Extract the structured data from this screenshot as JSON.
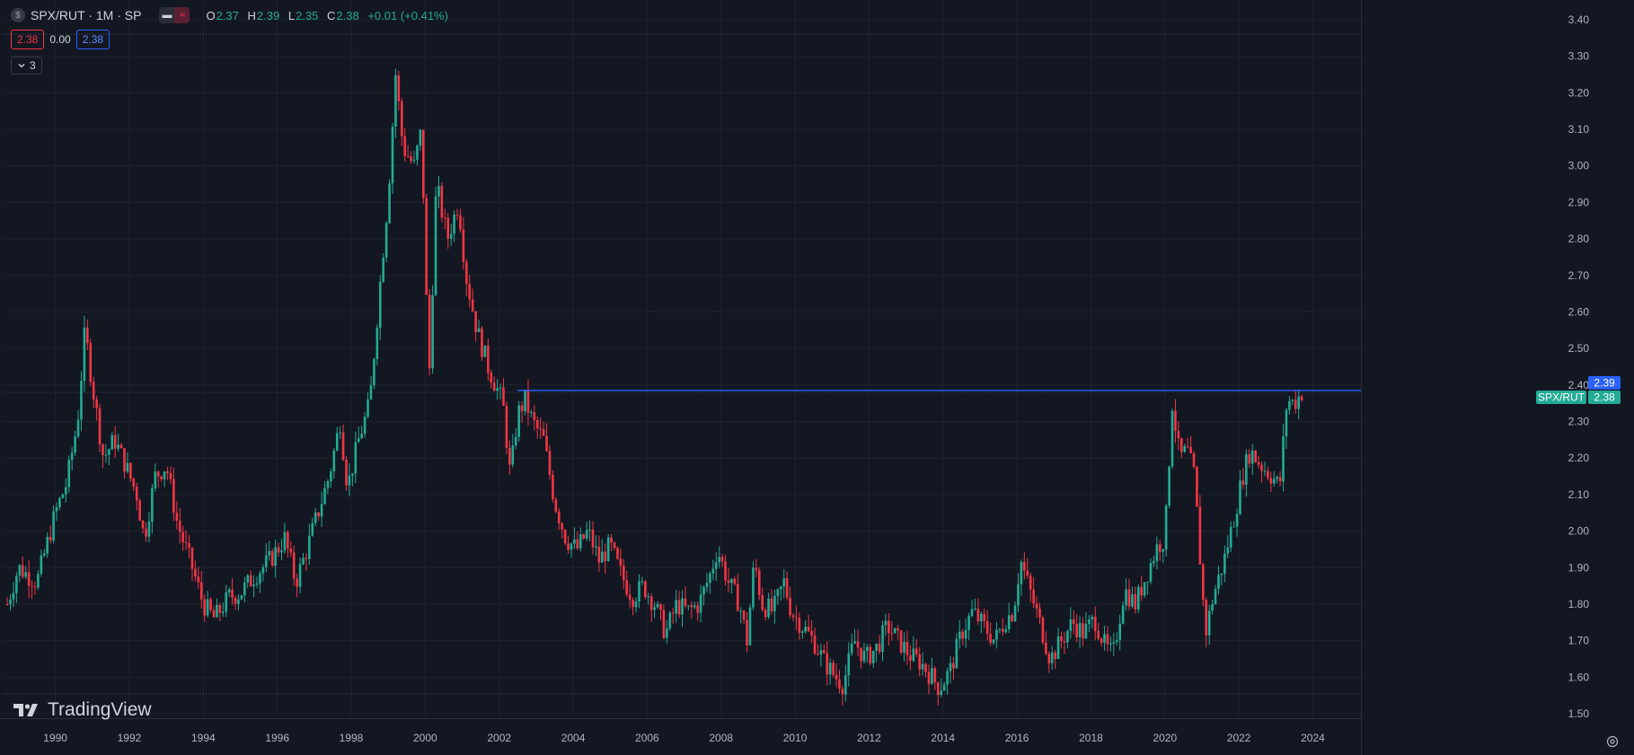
{
  "header": {
    "symbol_icon": "$",
    "symbol": "SPX/RUT · 1M · SP",
    "ohlc": [
      {
        "k": "O",
        "v": "2.37"
      },
      {
        "k": "H",
        "v": "2.39"
      },
      {
        "k": "L",
        "v": "2.35"
      },
      {
        "k": "C",
        "v": "2.38"
      },
      {
        "k": "",
        "v": "+0.01 (+0.41%)"
      }
    ]
  },
  "trade_box": {
    "sell": "2.38",
    "spread": "0.00",
    "buy": "2.38"
  },
  "indicators_toggle": {
    "icon": "chevron-down-icon",
    "count": "3"
  },
  "logo_text": "TradingView",
  "colors": {
    "bg": "#131722",
    "up": "#22ab94",
    "down": "#f23645",
    "line": "#2962ff",
    "grid": "#1e222d",
    "text": "#b2b5be"
  },
  "chart_data": {
    "type": "candlestick",
    "series_name": "SPX/RUT",
    "interval": "1M",
    "ylim": [
      1.5,
      3.4
    ],
    "yticks": [
      "3.40",
      "3.30",
      "3.20",
      "3.10",
      "3.00",
      "2.90",
      "2.80",
      "2.70",
      "2.60",
      "2.50",
      "2.40",
      "2.30",
      "2.20",
      "2.10",
      "2.00",
      "1.90",
      "1.80",
      "1.70",
      "1.60",
      "1.50"
    ],
    "xlim": [
      1988.6,
      2025.3
    ],
    "xticks": [
      "1990",
      "1992",
      "1994",
      "1996",
      "1998",
      "2000",
      "2002",
      "2004",
      "2006",
      "2008",
      "2010",
      "2012",
      "2014",
      "2016",
      "2018",
      "2020",
      "2022",
      "2024"
    ],
    "close_path": [
      [
        1988.7,
        1.8
      ],
      [
        1989.0,
        1.9
      ],
      [
        1989.5,
        1.86
      ],
      [
        1990.0,
        2.05
      ],
      [
        1990.3,
        2.13
      ],
      [
        1990.6,
        2.3
      ],
      [
        1990.8,
        2.55
      ],
      [
        1991.0,
        2.4
      ],
      [
        1991.3,
        2.2
      ],
      [
        1991.6,
        2.25
      ],
      [
        1991.9,
        2.18
      ],
      [
        1992.2,
        2.1
      ],
      [
        1992.4,
        1.98
      ],
      [
        1992.7,
        2.15
      ],
      [
        1993.0,
        2.18
      ],
      [
        1993.3,
        2.02
      ],
      [
        1993.7,
        1.9
      ],
      [
        1994.0,
        1.8
      ],
      [
        1994.3,
        1.76
      ],
      [
        1994.7,
        1.82
      ],
      [
        1995.0,
        1.83
      ],
      [
        1995.4,
        1.88
      ],
      [
        1995.8,
        1.92
      ],
      [
        1996.2,
        1.98
      ],
      [
        1996.5,
        1.86
      ],
      [
        1996.8,
        1.95
      ],
      [
        1997.1,
        2.05
      ],
      [
        1997.4,
        2.15
      ],
      [
        1997.7,
        2.3
      ],
      [
        1997.9,
        2.12
      ],
      [
        1998.2,
        2.25
      ],
      [
        1998.5,
        2.35
      ],
      [
        1998.8,
        2.7
      ],
      [
        1999.0,
        2.92
      ],
      [
        1999.2,
        3.25
      ],
      [
        1999.4,
        3.05
      ],
      [
        1999.7,
        3.0
      ],
      [
        1999.9,
        3.1
      ],
      [
        2000.1,
        2.4
      ],
      [
        2000.3,
        2.95
      ],
      [
        2000.6,
        2.8
      ],
      [
        2000.9,
        2.9
      ],
      [
        2001.1,
        2.7
      ],
      [
        2001.4,
        2.55
      ],
      [
        2001.7,
        2.45
      ],
      [
        2001.9,
        2.4
      ],
      [
        2002.1,
        2.35
      ],
      [
        2002.3,
        2.15
      ],
      [
        2002.5,
        2.32
      ],
      [
        2002.7,
        2.36
      ],
      [
        2002.9,
        2.3
      ],
      [
        2003.2,
        2.25
      ],
      [
        2003.5,
        2.08
      ],
      [
        2003.8,
        1.98
      ],
      [
        2004.1,
        1.95
      ],
      [
        2004.4,
        2.0
      ],
      [
        2004.7,
        1.92
      ],
      [
        2005.0,
        1.96
      ],
      [
        2005.3,
        1.88
      ],
      [
        2005.6,
        1.82
      ],
      [
        2005.9,
        1.85
      ],
      [
        2006.2,
        1.8
      ],
      [
        2006.5,
        1.72
      ],
      [
        2006.8,
        1.8
      ],
      [
        2007.1,
        1.78
      ],
      [
        2007.4,
        1.8
      ],
      [
        2007.7,
        1.88
      ],
      [
        2007.9,
        1.95
      ],
      [
        2008.2,
        1.86
      ],
      [
        2008.5,
        1.8
      ],
      [
        2008.7,
        1.7
      ],
      [
        2008.9,
        1.92
      ],
      [
        2009.1,
        1.8
      ],
      [
        2009.4,
        1.78
      ],
      [
        2009.7,
        1.86
      ],
      [
        2009.9,
        1.78
      ],
      [
        2010.2,
        1.74
      ],
      [
        2010.5,
        1.7
      ],
      [
        2010.8,
        1.64
      ],
      [
        2011.1,
        1.6
      ],
      [
        2011.3,
        1.58
      ],
      [
        2011.6,
        1.7
      ],
      [
        2011.9,
        1.65
      ],
      [
        2012.2,
        1.68
      ],
      [
        2012.5,
        1.74
      ],
      [
        2012.8,
        1.7
      ],
      [
        2013.1,
        1.66
      ],
      [
        2013.4,
        1.64
      ],
      [
        2013.7,
        1.6
      ],
      [
        2013.9,
        1.57
      ],
      [
        2014.2,
        1.62
      ],
      [
        2014.5,
        1.72
      ],
      [
        2014.8,
        1.78
      ],
      [
        2015.1,
        1.74
      ],
      [
        2015.4,
        1.7
      ],
      [
        2015.7,
        1.76
      ],
      [
        2015.9,
        1.78
      ],
      [
        2016.1,
        1.92
      ],
      [
        2016.4,
        1.82
      ],
      [
        2016.7,
        1.72
      ],
      [
        2016.9,
        1.65
      ],
      [
        2017.2,
        1.7
      ],
      [
        2017.5,
        1.75
      ],
      [
        2017.8,
        1.72
      ],
      [
        2018.1,
        1.76
      ],
      [
        2018.4,
        1.68
      ],
      [
        2018.6,
        1.66
      ],
      [
        2018.9,
        1.84
      ],
      [
        2019.2,
        1.8
      ],
      [
        2019.5,
        1.88
      ],
      [
        2019.8,
        1.96
      ],
      [
        2020.0,
        1.98
      ],
      [
        2020.2,
        2.35
      ],
      [
        2020.4,
        2.2
      ],
      [
        2020.6,
        2.22
      ],
      [
        2020.8,
        2.15
      ],
      [
        2021.0,
        1.85
      ],
      [
        2021.1,
        1.72
      ],
      [
        2021.3,
        1.82
      ],
      [
        2021.6,
        1.92
      ],
      [
        2021.9,
        2.05
      ],
      [
        2022.1,
        2.15
      ],
      [
        2022.3,
        2.22
      ],
      [
        2022.6,
        2.18
      ],
      [
        2022.9,
        2.15
      ],
      [
        2023.1,
        2.12
      ],
      [
        2023.3,
        2.36
      ],
      [
        2023.5,
        2.35
      ],
      [
        2023.7,
        2.38
      ]
    ],
    "horizontal_line": {
      "y": 2.385,
      "x_start": 2002.5,
      "color": "#2962ff"
    },
    "price_labels": [
      {
        "label": "2.39",
        "value": 2.39,
        "color": "#2962ff"
      },
      {
        "label": "SPX/RUT",
        "value": 2.38,
        "color": "#22ab94"
      },
      {
        "label": "2.38",
        "value": 2.38,
        "color": "#22ab94"
      }
    ],
    "dotted_lines": [
      3.36,
      1.555
    ],
    "grid": true
  }
}
